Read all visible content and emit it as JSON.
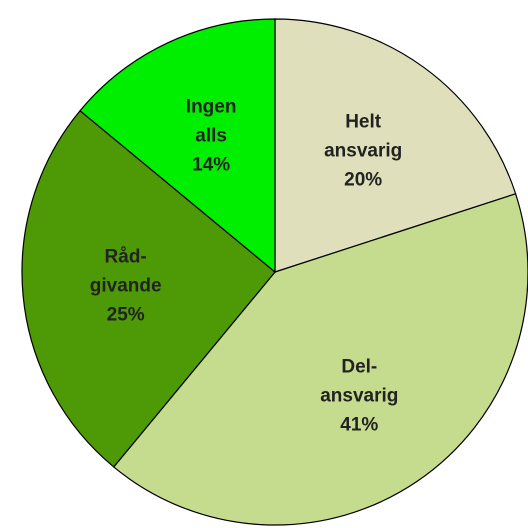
{
  "chart_data": {
    "type": "pie",
    "categories": [
      "Helt ansvarig",
      "Del-ansvarig",
      "Råd-givande",
      "Ingen alls"
    ],
    "values": [
      20,
      41,
      25,
      14
    ],
    "value_labels": [
      "20%",
      "41%",
      "25%",
      "14%"
    ],
    "colors": [
      "#dfe0bb",
      "#c5dc8e",
      "#4e9a06",
      "#00ee00"
    ]
  }
}
